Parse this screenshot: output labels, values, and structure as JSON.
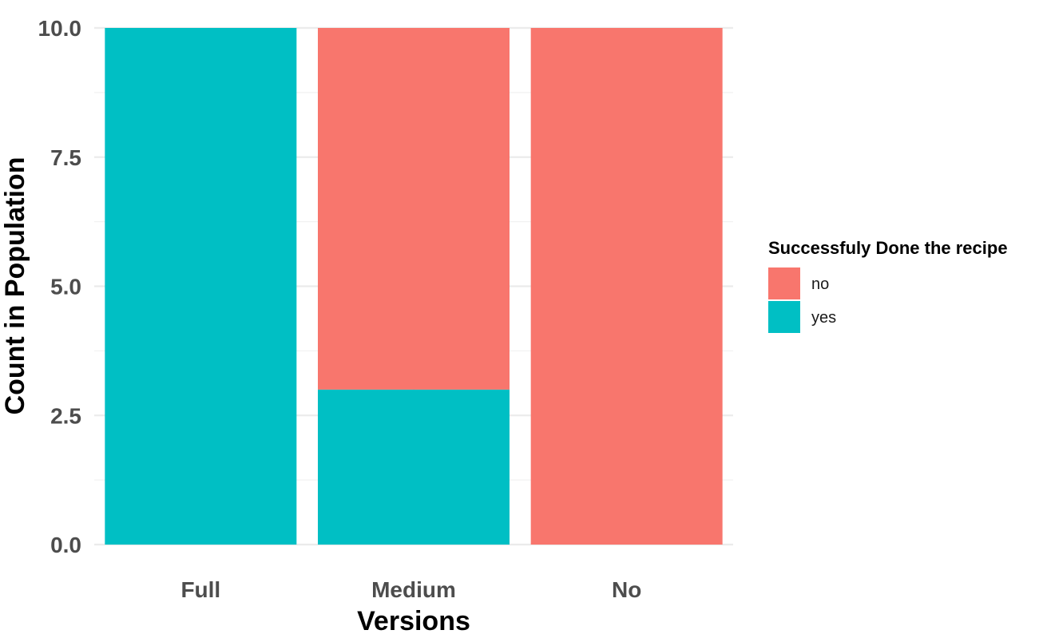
{
  "chart_data": {
    "type": "bar",
    "stacked": true,
    "categories": [
      "Full",
      "Medium",
      "No"
    ],
    "series": [
      {
        "name": "no",
        "values": [
          0,
          7,
          10
        ]
      },
      {
        "name": "yes",
        "values": [
          10,
          3,
          0
        ]
      }
    ],
    "colors": {
      "no": "#F8766D",
      "yes": "#00BFC4"
    },
    "xlabel": "Versions",
    "ylabel": "Count in Population",
    "ylim": [
      0,
      10
    ],
    "yticks": [
      "0.0",
      "2.5",
      "5.0",
      "7.5",
      "10.0"
    ],
    "ytick_values": [
      0,
      2.5,
      5,
      7.5,
      10
    ],
    "grid": true,
    "legend": {
      "title": "Successfuly Done the recipe",
      "placement": "right",
      "items": [
        "no",
        "yes"
      ]
    }
  }
}
